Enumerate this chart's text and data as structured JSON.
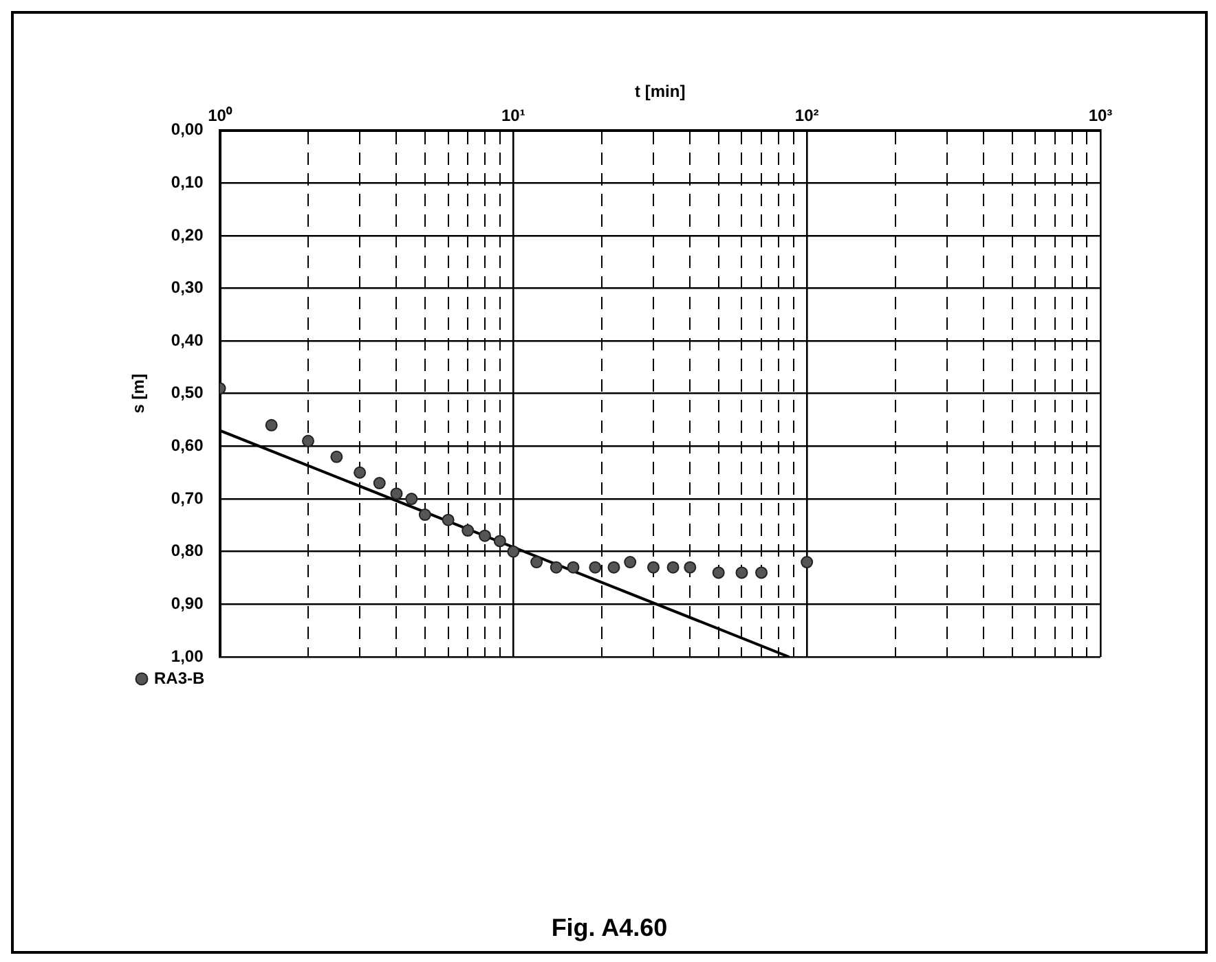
{
  "chart_data": {
    "type": "scatter",
    "xlabel": "t [min]",
    "ylabel": "s [m]",
    "log": "x",
    "grid": true,
    "legend": "bottom left",
    "xlim": [
      1,
      1000
    ],
    "ylim": [
      1.0,
      0.0
    ],
    "xticks": [
      {
        "value": 1,
        "label": "10⁰"
      },
      {
        "value": 2,
        "label": null
      },
      {
        "value": 3,
        "label": null
      },
      {
        "value": 4,
        "label": null
      },
      {
        "value": 5,
        "label": null
      },
      {
        "value": 6,
        "label": null
      },
      {
        "value": 7,
        "label": null
      },
      {
        "value": 8,
        "label": null
      },
      {
        "value": 9,
        "label": null
      },
      {
        "value": 10,
        "label": "10¹"
      },
      {
        "value": 20,
        "label": null
      },
      {
        "value": 30,
        "label": null
      },
      {
        "value": 40,
        "label": null
      },
      {
        "value": 50,
        "label": null
      },
      {
        "value": 60,
        "label": null
      },
      {
        "value": 70,
        "label": null
      },
      {
        "value": 80,
        "label": null
      },
      {
        "value": 90,
        "label": null
      },
      {
        "value": 100,
        "label": "10²"
      },
      {
        "value": 200,
        "label": null
      },
      {
        "value": 300,
        "label": null
      },
      {
        "value": 400,
        "label": null
      },
      {
        "value": 500,
        "label": null
      },
      {
        "value": 600,
        "label": null
      },
      {
        "value": 700,
        "label": null
      },
      {
        "value": 800,
        "label": null
      },
      {
        "value": 900,
        "label": null
      },
      {
        "value": 1000,
        "label": "10³"
      }
    ],
    "yticks": [
      {
        "value": 0,
        "label": "0,00"
      },
      {
        "value": 0.1,
        "label": "0,10"
      },
      {
        "value": 0.2,
        "label": "0,20"
      },
      {
        "value": 0.3,
        "label": "0,30"
      },
      {
        "value": 0.4,
        "label": "0,40"
      },
      {
        "value": 0.5,
        "label": "0,50"
      },
      {
        "value": 0.6,
        "label": "0,60"
      },
      {
        "value": 0.7,
        "label": "0,70"
      },
      {
        "value": 0.8,
        "label": "0,80"
      },
      {
        "value": 0.9,
        "label": "0,90"
      },
      {
        "value": 1.0,
        "label": "1,00"
      }
    ],
    "series": [
      {
        "name": "RA3-B",
        "marker": "circle",
        "color": "#555555",
        "x": [
          1,
          1.5,
          2,
          2.5,
          3,
          3.5,
          4,
          4.5,
          5,
          6,
          7,
          8,
          9,
          10,
          12,
          14,
          16,
          19,
          22,
          25,
          30,
          35,
          40,
          50,
          60,
          70,
          100
        ],
        "values": [
          0.49,
          0.56,
          0.59,
          0.62,
          0.65,
          0.67,
          0.69,
          0.7,
          0.73,
          0.74,
          0.76,
          0.77,
          0.78,
          0.8,
          0.82,
          0.83,
          0.83,
          0.83,
          0.83,
          0.82,
          0.83,
          0.83,
          0.83,
          0.84,
          0.84,
          0.84,
          0.82
        ]
      },
      {
        "type": "line",
        "marker": "none",
        "line_style": "solid",
        "color": "#000000",
        "x": [
          1,
          87
        ],
        "values": [
          0.57,
          1.0
        ]
      }
    ],
    "annotations": [
      "Fig. A4.60"
    ]
  }
}
